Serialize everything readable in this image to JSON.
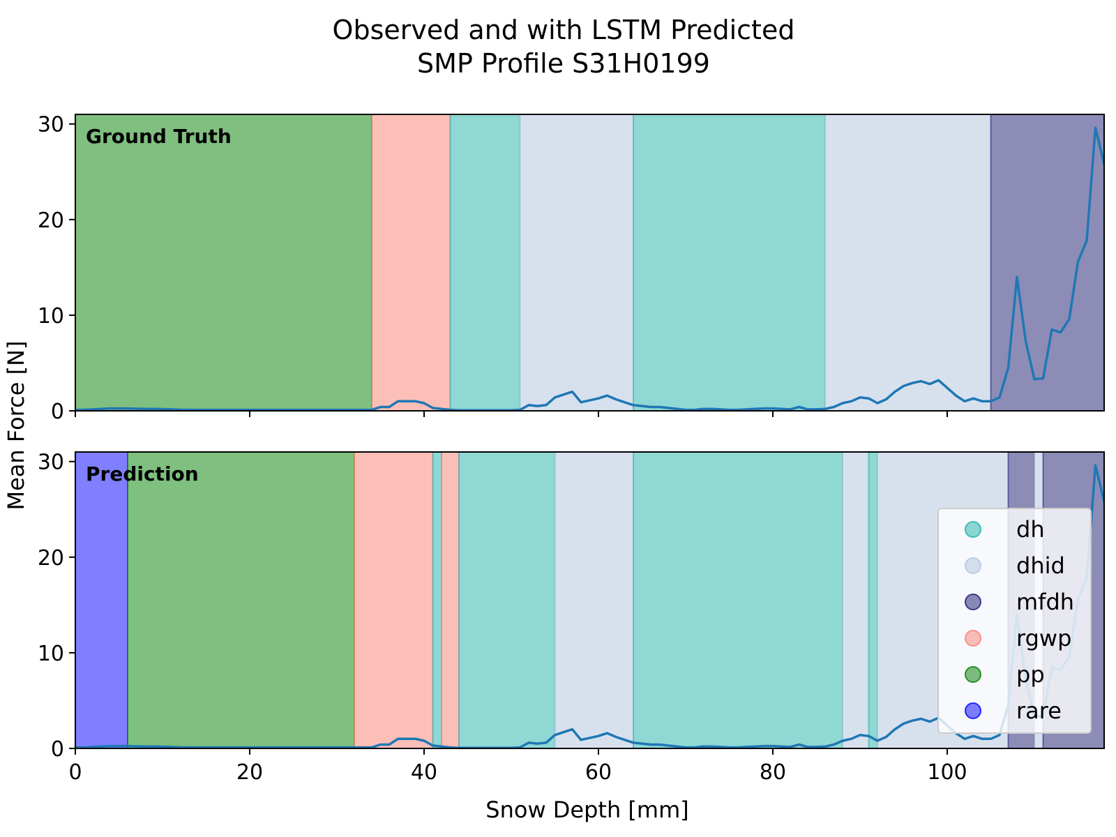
{
  "chart_data": {
    "type": "line",
    "title_line1": "Observed and with LSTM Predicted",
    "title_line2": "SMP Profile S31H0199",
    "xlabel": "Snow Depth [mm]",
    "ylabel": "Mean Force [N]",
    "xlim": [
      0,
      118
    ],
    "ylim": [
      0,
      31
    ],
    "xticks": [
      0,
      20,
      40,
      60,
      80,
      100
    ],
    "yticks": [
      0,
      10,
      20,
      30
    ],
    "legend_position": "lower-right",
    "classes": [
      {
        "name": "dh",
        "color": "#20b2aa"
      },
      {
        "name": "dhid",
        "color": "#b0c4de"
      },
      {
        "name": "mfdh",
        "color": "#191970"
      },
      {
        "name": "rgwp",
        "color": "#fa8072"
      },
      {
        "name": "pp",
        "color": "#008000"
      },
      {
        "name": "rare",
        "color": "#0000ff"
      }
    ],
    "series": [
      {
        "x": [
          0,
          1,
          2,
          3,
          4,
          5,
          6,
          7,
          8,
          9,
          10,
          11,
          12,
          13,
          14,
          15,
          16,
          17,
          18,
          19,
          20,
          21,
          22,
          23,
          24,
          25,
          26,
          27,
          28,
          29,
          30,
          31,
          32,
          33,
          34,
          35,
          36,
          37,
          38,
          39,
          40,
          41,
          42,
          43,
          44,
          45,
          46,
          47,
          48,
          49,
          50,
          51,
          52,
          53,
          54,
          55,
          56,
          57,
          58,
          59,
          60,
          61,
          62,
          63,
          64,
          65,
          66,
          67,
          68,
          69,
          70,
          71,
          72,
          73,
          74,
          75,
          76,
          77,
          78,
          79,
          80,
          81,
          82,
          83,
          84,
          85,
          86,
          87,
          88,
          89,
          90,
          91,
          92,
          93,
          94,
          95,
          96,
          97,
          98,
          99,
          100,
          101,
          102,
          103,
          104,
          105,
          106,
          107,
          108,
          109,
          110,
          111,
          112,
          113,
          114,
          115,
          116,
          117,
          118
        ],
        "y": [
          0.1,
          0.1,
          0.15,
          0.2,
          0.25,
          0.25,
          0.25,
          0.22,
          0.2,
          0.2,
          0.18,
          0.15,
          0.12,
          0.1,
          0.1,
          0.1,
          0.1,
          0.1,
          0.1,
          0.1,
          0.1,
          0.1,
          0.1,
          0.1,
          0.1,
          0.1,
          0.1,
          0.1,
          0.1,
          0.1,
          0.1,
          0.1,
          0.1,
          0.1,
          0.1,
          0.4,
          0.4,
          1.0,
          1.0,
          1.0,
          0.8,
          0.3,
          0.2,
          0.1,
          0.05,
          0.05,
          0.05,
          0.05,
          0.05,
          0.05,
          0.05,
          0.1,
          0.6,
          0.5,
          0.6,
          1.4,
          1.7,
          2.0,
          0.9,
          1.1,
          1.3,
          1.6,
          1.2,
          0.9,
          0.6,
          0.5,
          0.4,
          0.4,
          0.3,
          0.2,
          0.1,
          0.1,
          0.2,
          0.2,
          0.15,
          0.1,
          0.1,
          0.15,
          0.2,
          0.25,
          0.25,
          0.2,
          0.15,
          0.4,
          0.15,
          0.15,
          0.2,
          0.4,
          0.8,
          1.0,
          1.4,
          1.3,
          0.8,
          1.2,
          2.0,
          2.6,
          2.9,
          3.1,
          2.8,
          3.2,
          2.4,
          1.6,
          1.0,
          1.3,
          1.0,
          1.0,
          1.4,
          4.5,
          14.0,
          7.3,
          3.3,
          3.4,
          8.5,
          8.2,
          9.6,
          15.6,
          17.8,
          29.6,
          25.8
        ]
      }
    ],
    "panels": [
      {
        "label": "Ground Truth",
        "segments": [
          {
            "class": "pp",
            "start": 0,
            "end": 34
          },
          {
            "class": "rgwp",
            "start": 34,
            "end": 43
          },
          {
            "class": "dh",
            "start": 43,
            "end": 51
          },
          {
            "class": "dhid",
            "start": 51,
            "end": 64
          },
          {
            "class": "dh",
            "start": 64,
            "end": 86
          },
          {
            "class": "dhid",
            "start": 86,
            "end": 105
          },
          {
            "class": "mfdh",
            "start": 105,
            "end": 118
          }
        ]
      },
      {
        "label": "Prediction",
        "segments": [
          {
            "class": "rare",
            "start": 0,
            "end": 6
          },
          {
            "class": "pp",
            "start": 6,
            "end": 32
          },
          {
            "class": "rgwp",
            "start": 32,
            "end": 41
          },
          {
            "class": "dh",
            "start": 41,
            "end": 42
          },
          {
            "class": "rgwp",
            "start": 42,
            "end": 44
          },
          {
            "class": "dh",
            "start": 44,
            "end": 55
          },
          {
            "class": "dhid",
            "start": 55,
            "end": 64
          },
          {
            "class": "dh",
            "start": 64,
            "end": 88
          },
          {
            "class": "dhid",
            "start": 88,
            "end": 91
          },
          {
            "class": "dh",
            "start": 91,
            "end": 92
          },
          {
            "class": "dhid",
            "start": 92,
            "end": 107
          },
          {
            "class": "mfdh",
            "start": 107,
            "end": 110
          },
          {
            "class": "dhid",
            "start": 110,
            "end": 111
          },
          {
            "class": "mfdh",
            "start": 111,
            "end": 118
          }
        ]
      }
    ]
  }
}
